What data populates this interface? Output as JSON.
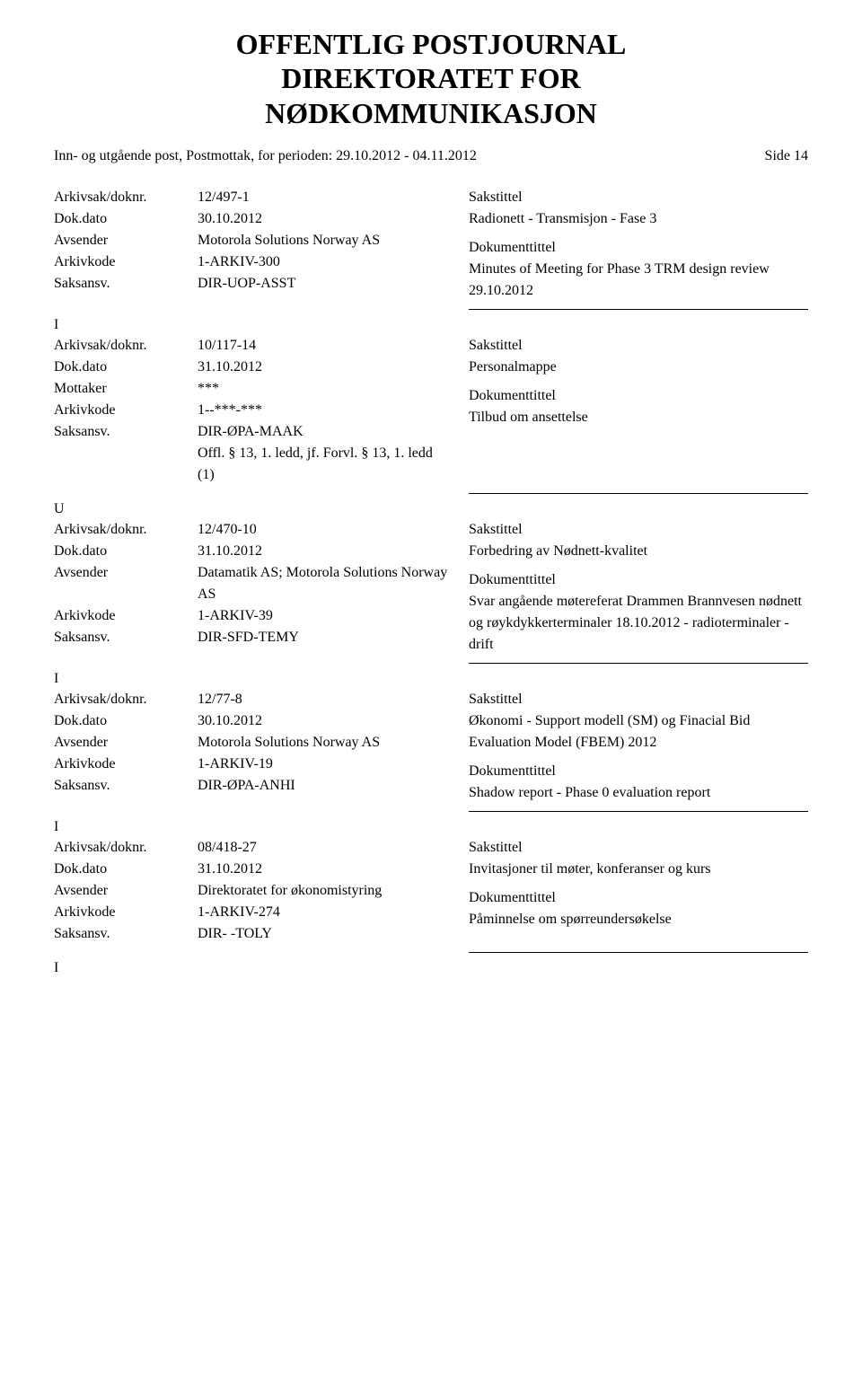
{
  "header": {
    "title_line1": "OFFENTLIG POSTJOURNAL",
    "title_line2": "DIREKTORATET FOR",
    "title_line3": "NØDKOMMUNIKASJON",
    "subtitle": "Inn- og utgående post, Postmottak, for perioden: 29.10.2012 - 04.11.2012",
    "page": "Side 14"
  },
  "labels": {
    "arkivsak": "Arkivsak/doknr.",
    "dokdato": "Dok.dato",
    "avsender": "Avsender",
    "mottaker": "Mottaker",
    "arkivkode": "Arkivkode",
    "saksansv": "Saksansv.",
    "sakstittel": "Sakstittel",
    "dokumenttittel": "Dokumenttittel"
  },
  "entries": [
    {
      "io": "",
      "arkivsak": "12/497-1",
      "dokdato": "30.10.2012",
      "party_label": "Avsender",
      "party": "Motorola Solutions Norway AS",
      "arkivkode": "1-ARKIV-300",
      "saksansv": "DIR-UOP-ASST",
      "extra_lines": [],
      "sakstittel": "Radionett - Transmisjon - Fase 3",
      "dokumenttittel": "Minutes of Meeting for Phase 3 TRM design review 29.10.2012",
      "io_after": "I"
    },
    {
      "io": "",
      "arkivsak": "10/117-14",
      "dokdato": "31.10.2012",
      "party_label": "Mottaker",
      "party": "***",
      "arkivkode": "1--***-***",
      "saksansv": "DIR-ØPA-MAAK",
      "extra_lines": [
        "Offl. § 13, 1. ledd, jf. Forvl. § 13, 1. ledd (1)"
      ],
      "sakstittel": "Personalmappe",
      "dokumenttittel": "Tilbud om ansettelse",
      "io_after": "U"
    },
    {
      "io": "",
      "arkivsak": "12/470-10",
      "dokdato": "31.10.2012",
      "party_label": "Avsender",
      "party": "Datamatik AS; Motorola Solutions Norway AS",
      "arkivkode": "1-ARKIV-39",
      "saksansv": "DIR-SFD-TEMY",
      "extra_lines": [],
      "sakstittel": "Forbedring av Nødnett-kvalitet",
      "dokumenttittel": "Svar angående møtereferat Drammen Brannvesen nødnett og røykdykkerterminaler 18.10.2012 - radioterminaler - drift",
      "io_after": "I"
    },
    {
      "io": "",
      "arkivsak": "12/77-8",
      "dokdato": "30.10.2012",
      "party_label": "Avsender",
      "party": "Motorola Solutions Norway AS",
      "arkivkode": "1-ARKIV-19",
      "saksansv": "DIR-ØPA-ANHI",
      "extra_lines": [],
      "sakstittel": "Økonomi - Support modell (SM) og Finacial Bid Evaluation Model (FBEM) 2012",
      "dokumenttittel": "Shadow report - Phase 0 evaluation report",
      "io_after": "I"
    },
    {
      "io": "",
      "arkivsak": "08/418-27",
      "dokdato": "31.10.2012",
      "party_label": "Avsender",
      "party": "Direktoratet for økonomistyring",
      "arkivkode": "1-ARKIV-274",
      "saksansv": "DIR- -TOLY",
      "extra_lines": [],
      "sakstittel": "Invitasjoner til møter, konferanser og kurs",
      "dokumenttittel": "Påminnelse om spørreundersøkelse",
      "io_after": "I"
    }
  ]
}
